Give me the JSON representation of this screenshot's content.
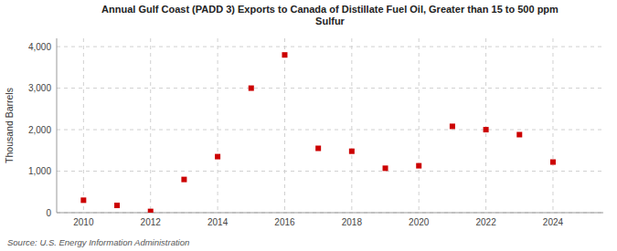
{
  "chart_data": {
    "type": "scatter",
    "title": "Annual Gulf Coast (PADD 3) Exports to Canada of Distillate Fuel Oil, Greater than 15 to 500 ppm\nSulfur",
    "y_label": "Thousand Barrels",
    "annotations": [
      "Source: U.S. Energy Information Administration"
    ],
    "x": [
      2010,
      2011,
      2012,
      2013,
      2014,
      2015,
      2016,
      2017,
      2018,
      2019,
      2020,
      2021,
      2022,
      2023,
      2024
    ],
    "values": [
      300,
      175,
      30,
      800,
      1350,
      3000,
      3800,
      1550,
      1480,
      1070,
      1130,
      2080,
      2000,
      1880,
      1220
    ],
    "color": "#cc0000",
    "marker": "square",
    "xlim": [
      2009.2,
      2025.5
    ],
    "xticks": [
      2010,
      2012,
      2014,
      2016,
      2018,
      2020,
      2022,
      2024
    ],
    "ylim": [
      0,
      4200
    ],
    "yticks": [
      0,
      {
        "value": 1000,
        "label": "1,000"
      },
      {
        "value": 2000,
        "label": "2,000"
      },
      {
        "value": 3000,
        "label": "3,000"
      },
      {
        "value": 4000,
        "label": "4,000"
      }
    ],
    "grid": true
  }
}
